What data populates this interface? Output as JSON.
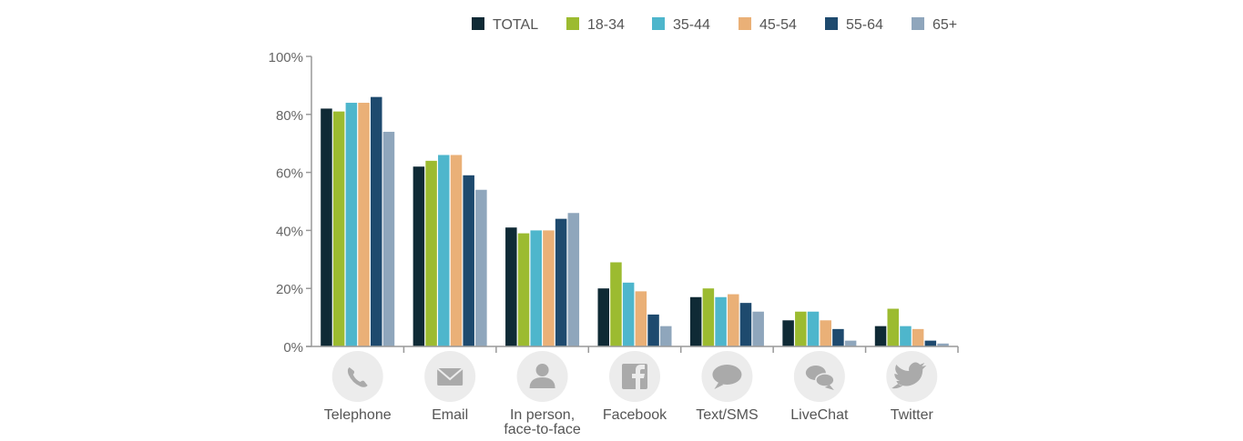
{
  "chart_data": {
    "type": "bar",
    "title": "",
    "xlabel": "",
    "ylabel": "",
    "ylim": [
      0,
      100
    ],
    "y_ticks": [
      "0%",
      "20%",
      "40%",
      "60%",
      "80%",
      "100%"
    ],
    "y_tick_values": [
      0,
      20,
      40,
      60,
      80,
      100
    ],
    "grid": false,
    "legend_position": "top",
    "categories": [
      {
        "label": [
          "Telephone"
        ],
        "icon": "telephone-icon"
      },
      {
        "label": [
          "Email"
        ],
        "icon": "email-icon"
      },
      {
        "label": [
          "In person,",
          "face-to-face"
        ],
        "icon": "person-icon"
      },
      {
        "label": [
          "Facebook"
        ],
        "icon": "facebook-icon"
      },
      {
        "label": [
          "Text/SMS"
        ],
        "icon": "speech-bubble-icon"
      },
      {
        "label": [
          "LiveChat"
        ],
        "icon": "chat-bubbles-icon"
      },
      {
        "label": [
          "Twitter"
        ],
        "icon": "twitter-icon"
      }
    ],
    "series": [
      {
        "name": "TOTAL",
        "color": "#0f2a35",
        "values": [
          82,
          62,
          41,
          20,
          17,
          9,
          7
        ]
      },
      {
        "name": "18-34",
        "color": "#9cbb30",
        "values": [
          81,
          64,
          39,
          29,
          20,
          12,
          13
        ]
      },
      {
        "name": "35-44",
        "color": "#4eb6cc",
        "values": [
          84,
          66,
          40,
          22,
          17,
          12,
          7
        ]
      },
      {
        "name": "45-54",
        "color": "#eab077",
        "values": [
          84,
          66,
          40,
          19,
          18,
          9,
          6
        ]
      },
      {
        "name": "55-64",
        "color": "#1e4a6e",
        "values": [
          86,
          59,
          44,
          11,
          15,
          6,
          2
        ]
      },
      {
        "name": "65+",
        "color": "#8fa6bc",
        "values": [
          74,
          54,
          46,
          7,
          12,
          2,
          1
        ]
      }
    ]
  }
}
